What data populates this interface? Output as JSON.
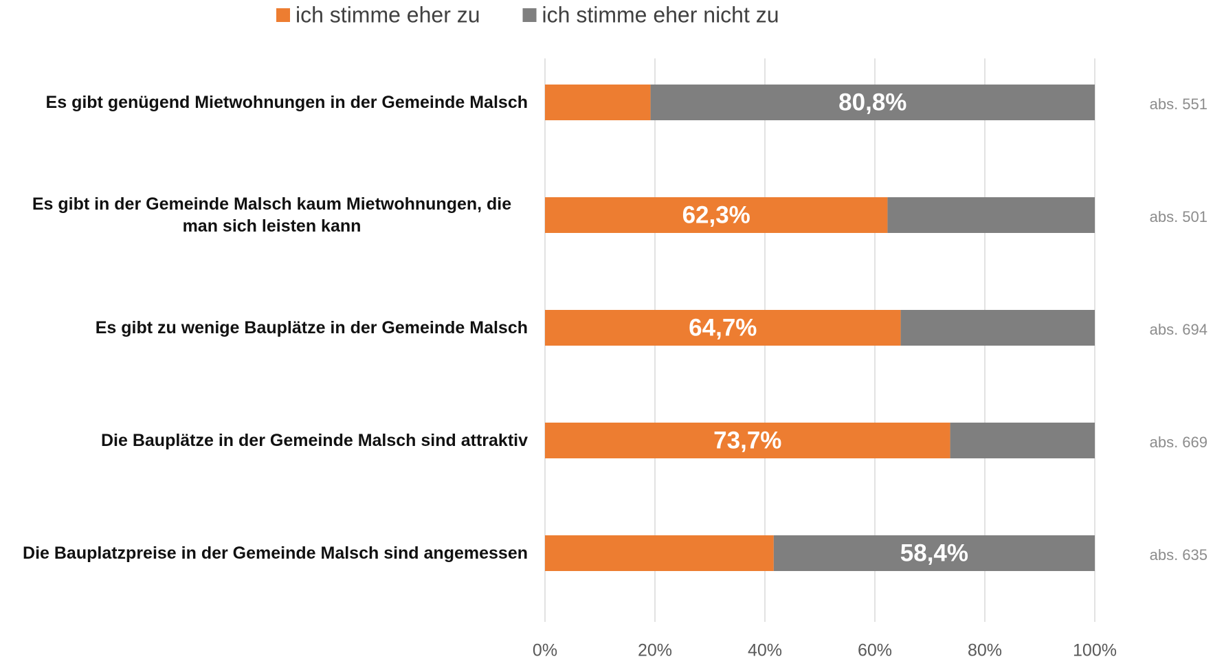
{
  "chart_data": {
    "type": "stacked-barh",
    "categories": [
      "Es gibt genügend Mietwohnungen in der Gemeinde Malsch",
      "Es gibt in der Gemeinde Malsch kaum Mietwohnungen, die man sich leisten kann",
      "Es gibt zu wenige Bauplätze in der Gemeinde Malsch",
      "Die Bauplätze in der Gemeinde Malsch sind attraktiv",
      "Die Bauplatzpreise in der Gemeinde Malsch sind angemessen"
    ],
    "series": [
      {
        "name": "ich stimme eher zu",
        "color": "#ed7d31",
        "values": [
          19.2,
          62.3,
          64.7,
          73.7,
          41.6
        ],
        "value_labels": [
          null,
          "62,3%",
          "64,7%",
          "73,7%",
          null
        ]
      },
      {
        "name": "ich stimme eher nicht zu",
        "color": "#7f7f7f",
        "values": [
          80.8,
          37.7,
          35.3,
          26.3,
          58.4
        ],
        "value_labels": [
          "80,8%",
          null,
          null,
          null,
          "58,4%"
        ]
      }
    ],
    "n_labels": [
      "abs. 551",
      "abs. 501",
      "abs. 694",
      "abs. 669",
      "abs. 635"
    ],
    "xlim": [
      0,
      100
    ],
    "xticks": [
      {
        "value": 0,
        "label": "0%"
      },
      {
        "value": 20,
        "label": "20%"
      },
      {
        "value": 40,
        "label": "40%"
      },
      {
        "value": 60,
        "label": "60%"
      },
      {
        "value": 80,
        "label": "80%"
      },
      {
        "value": 100,
        "label": "100%"
      }
    ],
    "grid": true,
    "legend": "top"
  }
}
